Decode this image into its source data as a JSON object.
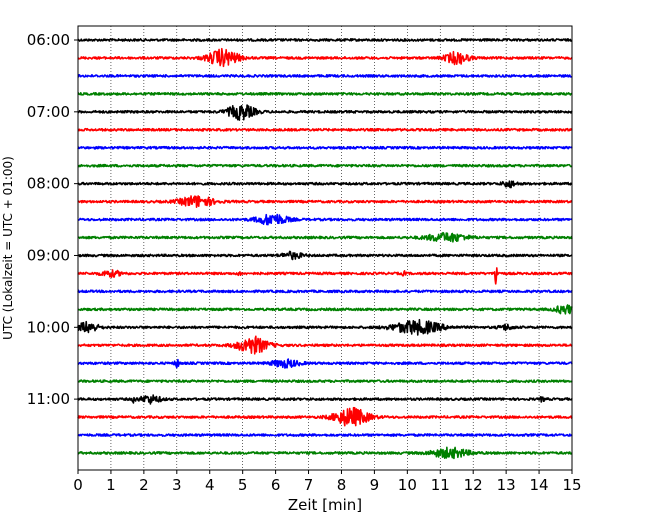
{
  "chart_data": {
    "type": "line",
    "title": "",
    "xlabel": "Zeit  [min]",
    "ylabel": "UTC (Lokalzeit = UTC + 01:00)",
    "xlim": [
      0,
      15
    ],
    "x_ticks": [
      0,
      1,
      2,
      3,
      4,
      5,
      6,
      7,
      8,
      9,
      10,
      11,
      12,
      13,
      14,
      15
    ],
    "x_tick_labels": [
      "0",
      "1",
      "2",
      "3",
      "4",
      "5",
      "6",
      "7",
      "8",
      "9",
      "10",
      "11",
      "12",
      "13",
      "14",
      "15"
    ],
    "y_tick_labels": [
      "06:00",
      "07:00",
      "08:00",
      "09:00",
      "10:00",
      "11:00"
    ],
    "grid": "vertical dotted at each minute",
    "color_cycle": [
      "#000000",
      "#ff0000",
      "#0000ff",
      "#008000"
    ],
    "trace_interval_min": 15,
    "first_trace_utc": "06:00",
    "last_trace_utc": "11:45",
    "traces": [
      {
        "time": "06:00",
        "color": "#000000",
        "noise": 0.35,
        "events": []
      },
      {
        "time": "06:15",
        "color": "#ff0000",
        "noise": 0.35,
        "events": [
          {
            "t": 4.4,
            "amp": 2.6,
            "width": 0.45
          },
          {
            "t": 11.5,
            "amp": 1.8,
            "width": 0.35
          }
        ]
      },
      {
        "time": "06:30",
        "color": "#0000ff",
        "noise": 0.35,
        "events": []
      },
      {
        "time": "06:45",
        "color": "#008000",
        "noise": 0.35,
        "events": []
      },
      {
        "time": "07:00",
        "color": "#000000",
        "noise": 0.35,
        "events": [
          {
            "t": 4.95,
            "amp": 2.3,
            "width": 0.4
          }
        ]
      },
      {
        "time": "07:15",
        "color": "#ff0000",
        "noise": 0.35,
        "events": []
      },
      {
        "time": "07:30",
        "color": "#0000ff",
        "noise": 0.35,
        "events": []
      },
      {
        "time": "07:45",
        "color": "#008000",
        "noise": 0.35,
        "events": []
      },
      {
        "time": "08:00",
        "color": "#000000",
        "noise": 0.35,
        "events": [
          {
            "t": 13.1,
            "amp": 1.0,
            "width": 0.2
          }
        ]
      },
      {
        "time": "08:15",
        "color": "#ff0000",
        "noise": 0.35,
        "events": [
          {
            "t": 3.6,
            "amp": 1.7,
            "width": 0.5
          }
        ]
      },
      {
        "time": "08:30",
        "color": "#0000ff",
        "noise": 0.35,
        "events": [
          {
            "t": 5.9,
            "amp": 1.7,
            "width": 0.45
          }
        ]
      },
      {
        "time": "08:45",
        "color": "#008000",
        "noise": 0.35,
        "events": [
          {
            "t": 11.2,
            "amp": 1.3,
            "width": 0.6
          }
        ]
      },
      {
        "time": "09:00",
        "color": "#000000",
        "noise": 0.35,
        "events": [
          {
            "t": 6.5,
            "amp": 1.0,
            "width": 0.3
          }
        ]
      },
      {
        "time": "09:15",
        "color": "#ff0000",
        "noise": 0.35,
        "events": [
          {
            "t": 1.0,
            "amp": 0.9,
            "width": 0.3
          },
          {
            "t": 4.9,
            "amp": 1.3,
            "width": 0.03
          },
          {
            "t": 9.9,
            "amp": 1.0,
            "width": 0.04
          },
          {
            "t": 12.7,
            "amp": 5.5,
            "width": 0.04
          }
        ]
      },
      {
        "time": "09:30",
        "color": "#0000ff",
        "noise": 0.35,
        "events": []
      },
      {
        "time": "09:45",
        "color": "#008000",
        "noise": 0.35,
        "events": [
          {
            "t": 14.8,
            "amp": 1.3,
            "width": 0.3
          }
        ]
      },
      {
        "time": "10:00",
        "color": "#000000",
        "noise": 0.35,
        "events": [
          {
            "t": 0.3,
            "amp": 1.6,
            "width": 0.3
          },
          {
            "t": 10.3,
            "amp": 2.1,
            "width": 0.7
          },
          {
            "t": 13.0,
            "amp": 0.8,
            "width": 0.2
          }
        ]
      },
      {
        "time": "10:15",
        "color": "#ff0000",
        "noise": 0.35,
        "events": [
          {
            "t": 5.3,
            "amp": 2.6,
            "width": 0.45
          }
        ]
      },
      {
        "time": "10:30",
        "color": "#0000ff",
        "noise": 0.35,
        "events": [
          {
            "t": 3.0,
            "amp": 1.4,
            "width": 0.06
          },
          {
            "t": 6.3,
            "amp": 1.2,
            "width": 0.4
          }
        ]
      },
      {
        "time": "10:45",
        "color": "#008000",
        "noise": 0.35,
        "events": []
      },
      {
        "time": "11:00",
        "color": "#000000",
        "noise": 0.35,
        "events": [
          {
            "t": 1.7,
            "amp": 1.0,
            "width": 0.05
          },
          {
            "t": 2.2,
            "amp": 1.2,
            "width": 0.3
          },
          {
            "t": 14.1,
            "amp": 0.8,
            "width": 0.06
          }
        ]
      },
      {
        "time": "11:15",
        "color": "#ff0000",
        "noise": 0.35,
        "events": [
          {
            "t": 8.3,
            "amp": 2.8,
            "width": 0.5
          }
        ]
      },
      {
        "time": "11:30",
        "color": "#0000ff",
        "noise": 0.35,
        "events": []
      },
      {
        "time": "11:45",
        "color": "#008000",
        "noise": 0.35,
        "events": [
          {
            "t": 11.3,
            "amp": 1.5,
            "width": 0.55
          }
        ]
      }
    ]
  }
}
